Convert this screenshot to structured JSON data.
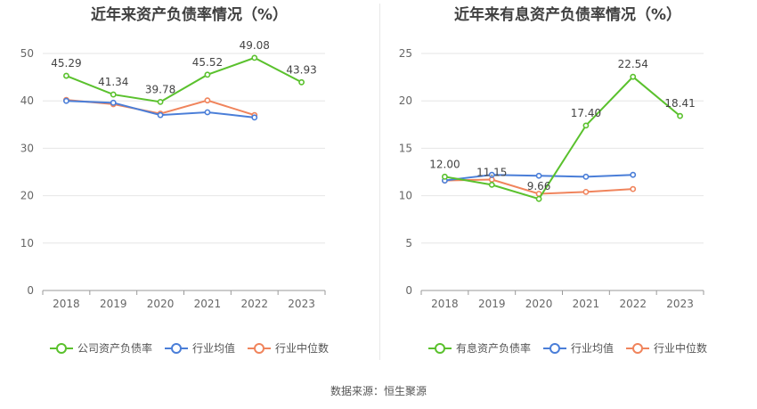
{
  "source_note": "数据来源：恒生聚源",
  "chart_data": [
    {
      "type": "line",
      "title": "近年来资产负债率情况（%）",
      "categories": [
        "2018",
        "2019",
        "2020",
        "2021",
        "2022",
        "2023"
      ],
      "ylim": [
        0,
        50
      ],
      "yticks": [
        0,
        10,
        20,
        30,
        40,
        50
      ],
      "grid": true,
      "legend_position": "bottom",
      "series": [
        {
          "name": "公司资产负债率",
          "color": "#5ac12d",
          "values": [
            45.29,
            41.34,
            39.78,
            45.52,
            49.08,
            43.93
          ],
          "labels": true
        },
        {
          "name": "行业均值",
          "color": "#4a7ed8",
          "values": [
            40.0,
            39.6,
            37.0,
            37.6,
            36.5,
            null
          ],
          "labels": false
        },
        {
          "name": "行业中位数",
          "color": "#f0845c",
          "values": [
            40.2,
            39.3,
            37.3,
            40.1,
            37.0,
            null
          ],
          "labels": false
        }
      ]
    },
    {
      "type": "line",
      "title": "近年来有息资产负债率情况（%）",
      "categories": [
        "2018",
        "2019",
        "2020",
        "2021",
        "2022",
        "2023"
      ],
      "ylim": [
        0,
        25
      ],
      "yticks": [
        0,
        5,
        10,
        15,
        20,
        25
      ],
      "grid": true,
      "legend_position": "bottom",
      "series": [
        {
          "name": "有息资产负债率",
          "color": "#5ac12d",
          "values": [
            12.0,
            11.15,
            9.66,
            17.4,
            22.54,
            18.41
          ],
          "labels": true
        },
        {
          "name": "行业均值",
          "color": "#4a7ed8",
          "values": [
            11.6,
            12.2,
            12.1,
            12.0,
            12.2,
            null
          ],
          "labels": false
        },
        {
          "name": "行业中位数",
          "color": "#f0845c",
          "values": [
            11.6,
            11.7,
            10.2,
            10.4,
            10.7,
            null
          ],
          "labels": false
        }
      ]
    }
  ]
}
